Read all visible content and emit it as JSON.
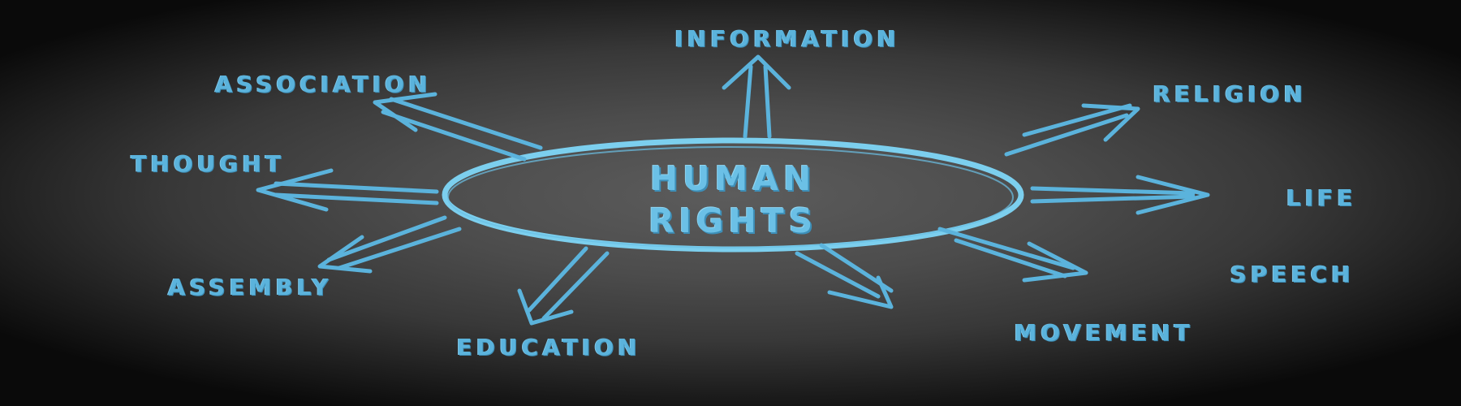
{
  "diagram": {
    "center_line1": "Human",
    "center_line2": "Rights",
    "nodes": {
      "information": "Information",
      "association": "Association",
      "religion": "Religion",
      "thought": "Thought",
      "life": "Life",
      "assembly": "Assembly",
      "speech": "Speech",
      "education": "Education",
      "movement": "Movement"
    }
  },
  "colors": {
    "chalk_blue": "#5bb3dc",
    "ellipse_stroke": "#7ccfee",
    "board_center": "#5c5c5c",
    "board_edge": "#0a0a0a"
  }
}
